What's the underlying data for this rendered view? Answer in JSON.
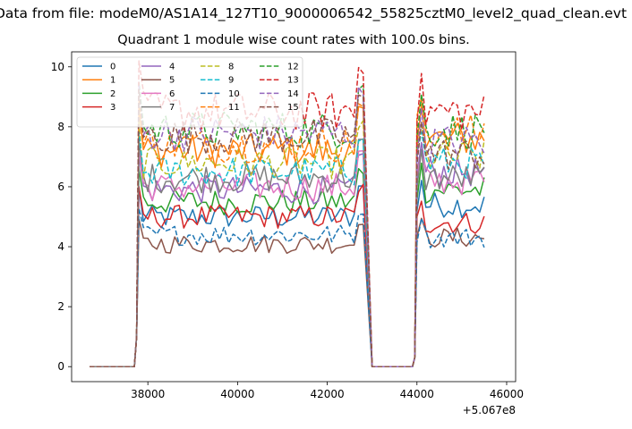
{
  "figure": {
    "suptitle": "Data from file: modeM0/AS1A14_127T10_9000006542_55825cztM0_level2_quad_clean.evt"
  },
  "chart_data": {
    "type": "line",
    "title": "Quadrant 1 module wise count rates with 100.0s bins.",
    "xlabel": "",
    "ylabel": "",
    "x_offset_label": "+5.067e8",
    "xlim": [
      36300,
      46200
    ],
    "ylim": [
      -0.5,
      10.5
    ],
    "xticks": [
      38000,
      40000,
      42000,
      44000,
      46000
    ],
    "xtick_labels": [
      "38000",
      "40000",
      "42000",
      "44000",
      "46000"
    ],
    "yticks": [
      0,
      2,
      4,
      6,
      8,
      10
    ],
    "ytick_labels": [
      "0",
      "2",
      "4",
      "6",
      "8",
      "10"
    ],
    "grid": false,
    "legend_placement": "upper-left",
    "legend_columns": 4,
    "segments": {
      "start_zero": [
        36700,
        37700
      ],
      "first_on": [
        37800,
        42800
      ],
      "gap_zero": [
        43000,
        43900
      ],
      "second_on": [
        44000,
        45550
      ]
    },
    "series": [
      {
        "name": "0",
        "color": "#1f77b4",
        "dash": "solid",
        "level": 5.0,
        "second": 5.4
      },
      {
        "name": "1",
        "color": "#ff7f0e",
        "dash": "solid",
        "level": 7.2,
        "second": 7.6
      },
      {
        "name": "2",
        "color": "#2ca02c",
        "dash": "solid",
        "level": 5.5,
        "second": 5.9
      },
      {
        "name": "3",
        "color": "#d62728",
        "dash": "solid",
        "level": 5.0,
        "second": 4.8
      },
      {
        "name": "4",
        "color": "#9467bd",
        "dash": "solid",
        "level": 5.9,
        "second": 6.5
      },
      {
        "name": "5",
        "color": "#8c564b",
        "dash": "solid",
        "level": 4.1,
        "second": 4.3
      },
      {
        "name": "6",
        "color": "#e377c2",
        "dash": "solid",
        "level": 6.0,
        "second": 6.2
      },
      {
        "name": "7",
        "color": "#7f7f7f",
        "dash": "solid",
        "level": 6.3,
        "second": 6.3
      },
      {
        "name": "8",
        "color": "#bcbd22",
        "dash": "dashed",
        "level": 6.8,
        "second": 7.0
      },
      {
        "name": "9",
        "color": "#17becf",
        "dash": "dashed",
        "level": 6.5,
        "second": 6.8
      },
      {
        "name": "10",
        "color": "#1f77b4",
        "dash": "dashed",
        "level": 4.4,
        "second": 4.3
      },
      {
        "name": "11",
        "color": "#ff7f0e",
        "dash": "dashed",
        "level": 7.4,
        "second": 7.8
      },
      {
        "name": "12",
        "color": "#2ca02c",
        "dash": "dashed",
        "level": 7.9,
        "second": 7.9
      },
      {
        "name": "13",
        "color": "#d62728",
        "dash": "dashed",
        "level": 8.5,
        "second": 8.5
      },
      {
        "name": "14",
        "color": "#9467bd",
        "dash": "dashed",
        "level": 7.8,
        "second": 7.5
      },
      {
        "name": "15",
        "color": "#8c564b",
        "dash": "dashed",
        "level": 7.7,
        "second": 7.1
      }
    ]
  }
}
